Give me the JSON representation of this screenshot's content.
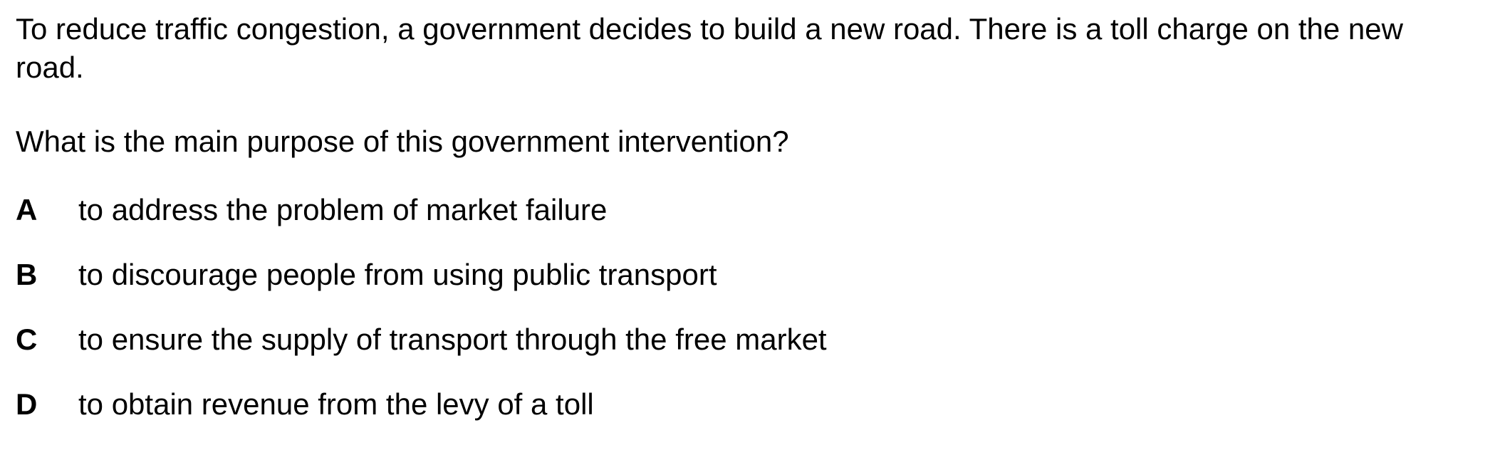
{
  "question": {
    "stem": "To reduce traffic congestion, a government decides to build a new road. There is a toll charge on the new road.",
    "prompt": "What is the main purpose of this government intervention?"
  },
  "options": [
    {
      "letter": "A",
      "text": "to address the problem of market failure"
    },
    {
      "letter": "B",
      "text": "to discourage people from using public transport"
    },
    {
      "letter": "C",
      "text": "to ensure the supply of transport through the free market"
    },
    {
      "letter": "D",
      "text": "to obtain revenue from the levy of a toll"
    }
  ]
}
